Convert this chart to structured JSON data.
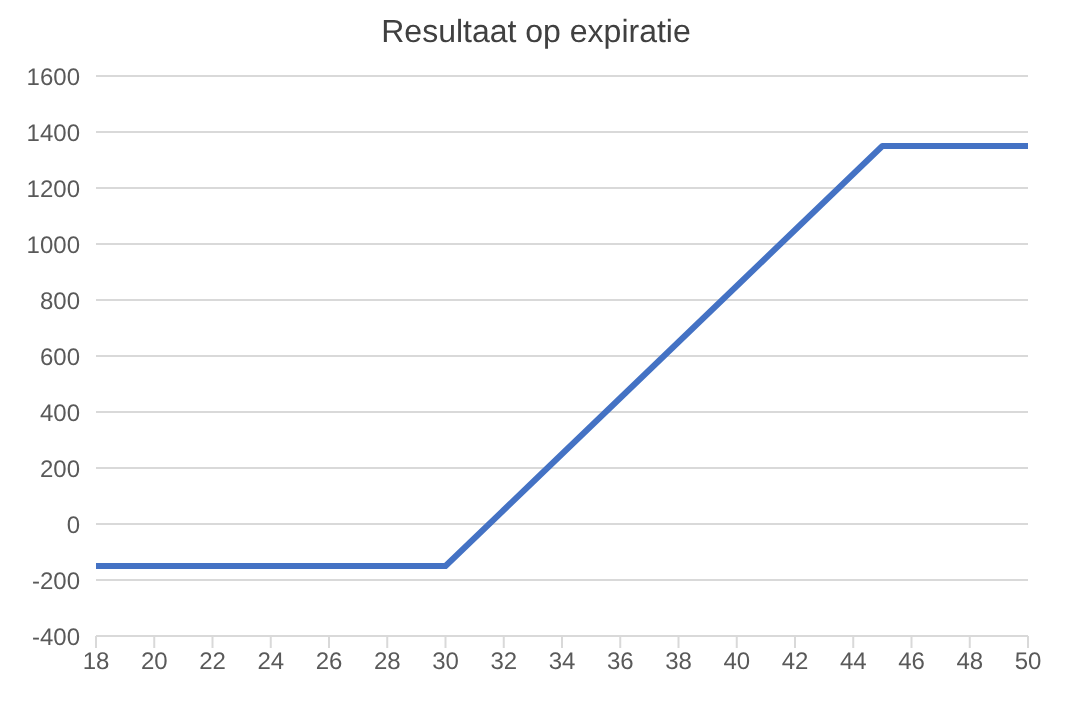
{
  "chart_data": {
    "type": "line",
    "title": "Resultaat op expiratie",
    "x": [
      18,
      19,
      20,
      21,
      22,
      23,
      24,
      25,
      26,
      27,
      28,
      29,
      30,
      31,
      32,
      33,
      34,
      35,
      36,
      37,
      38,
      39,
      40,
      41,
      42,
      43,
      44,
      45,
      46,
      47,
      48,
      49,
      50
    ],
    "series": [
      {
        "color": "#4472c4",
        "values": [
          -150,
          -150,
          -150,
          -150,
          -150,
          -150,
          -150,
          -150,
          -150,
          -150,
          -150,
          -150,
          -150,
          -50,
          50,
          150,
          250,
          350,
          450,
          550,
          650,
          750,
          850,
          950,
          1050,
          1150,
          1250,
          1350,
          1350,
          1350,
          1350,
          1350,
          1350
        ]
      }
    ],
    "xlim": [
      18,
      50
    ],
    "xticks": [
      18,
      20,
      22,
      24,
      26,
      28,
      30,
      32,
      34,
      36,
      38,
      40,
      42,
      44,
      46,
      48,
      50
    ],
    "ylim": [
      -400,
      1600
    ],
    "yticks": [
      -400,
      -200,
      0,
      200,
      400,
      600,
      800,
      1000,
      1200,
      1400,
      1600
    ],
    "grid": "y",
    "legend": false,
    "marker": "none",
    "line_style": "solid"
  }
}
